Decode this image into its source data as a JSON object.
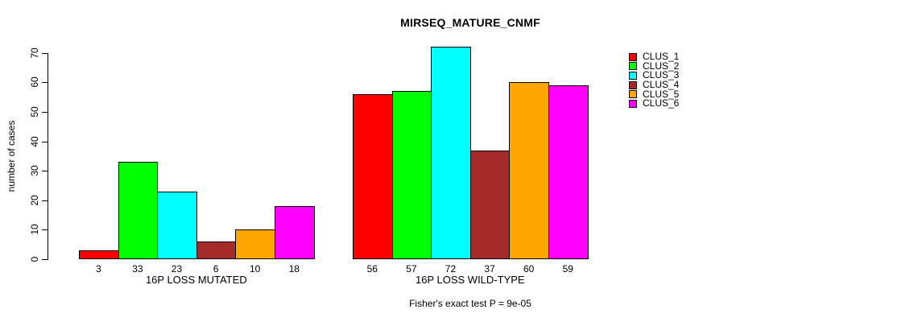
{
  "title": "MIRSEQ_MATURE_CNMF",
  "chart_data": {
    "type": "bar",
    "title": "MIRSEQ_MATURE_CNMF",
    "ylabel": "number of cases",
    "xlabel": "",
    "ylim": [
      0,
      70
    ],
    "yticks": [
      0,
      10,
      20,
      30,
      40,
      50,
      60,
      70
    ],
    "grid": false,
    "legend_position": "right",
    "background_color": "#FFFFFF",
    "axis_color": "#000000",
    "bar_border_color": "#000000",
    "categories": [
      "16P LOSS MUTATED",
      "16P LOSS WILD-TYPE"
    ],
    "series": [
      {
        "name": "CLUS_1",
        "color": "#FF0000",
        "values": [
          3,
          56
        ]
      },
      {
        "name": "CLUS_2",
        "color": "#00FF00",
        "values": [
          33,
          57
        ]
      },
      {
        "name": "CLUS_3",
        "color": "#00FFFF",
        "values": [
          23,
          72
        ]
      },
      {
        "name": "CLUS_4",
        "color": "#A52A2A",
        "values": [
          6,
          37
        ]
      },
      {
        "name": "CLUS_5",
        "color": "#FFA500",
        "values": [
          10,
          60
        ]
      },
      {
        "name": "CLUS_6",
        "color": "#FF00FF",
        "values": [
          18,
          59
        ]
      }
    ],
    "bar_value_labels_shown": true,
    "annotation": "Fisher's exact test P = 9e-05"
  }
}
